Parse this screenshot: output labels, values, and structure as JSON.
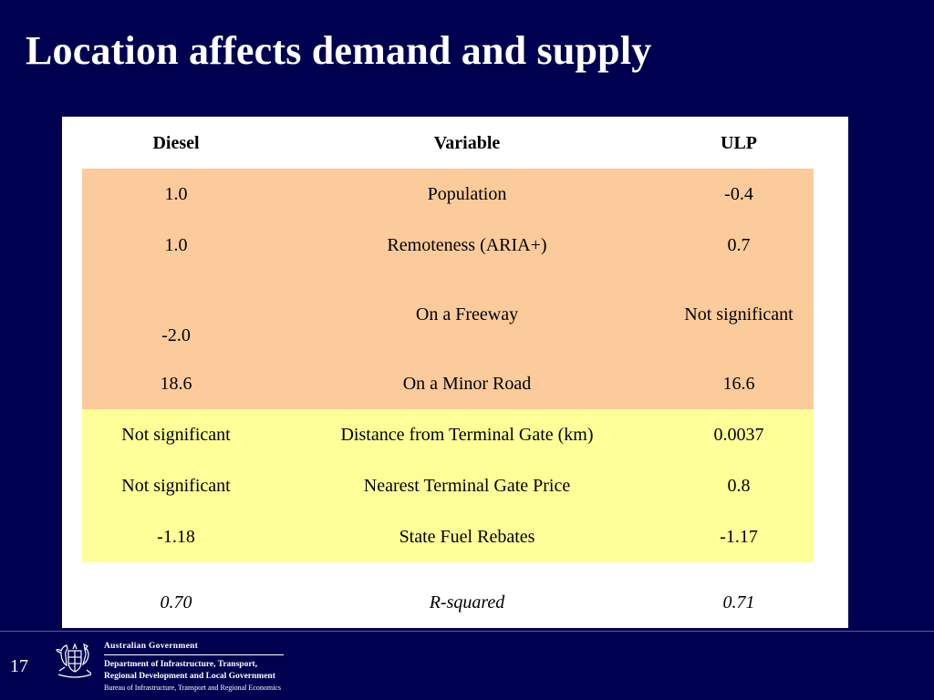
{
  "title": "Location affects demand and supply",
  "table": {
    "headers": {
      "diesel": "Diesel",
      "variable": "Variable",
      "ulp": "ULP"
    },
    "location_rows": [
      {
        "diesel": "1.0",
        "variable": "Population",
        "ulp": "-0.4"
      },
      {
        "diesel": "1.0",
        "variable": "Remoteness (ARIA+)",
        "ulp": "0.7"
      },
      {
        "diesel": "-2.0",
        "variable": "On a Freeway",
        "ulp": "Not significant"
      },
      {
        "diesel": "18.6",
        "variable": "On a Minor Road",
        "ulp": "16.6"
      }
    ],
    "price_rows": [
      {
        "diesel": "Not significant",
        "variable": "Distance from Terminal Gate (km)",
        "ulp": "0.0037"
      },
      {
        "diesel": "Not significant",
        "variable": "Nearest Terminal Gate Price",
        "ulp": "0.8"
      },
      {
        "diesel": "-1.18",
        "variable": "State Fuel Rebates",
        "ulp": "-1.17"
      }
    ],
    "fit_row": {
      "diesel": "0.70",
      "variable": "R-squared",
      "ulp": "0.71"
    }
  },
  "colors": {
    "background": "#000050",
    "location_rows": "#fccb9b",
    "price_rows": "#ffff99"
  },
  "footer": {
    "page_number": "17",
    "government": "Australian Government",
    "department_line1": "Department of Infrastructure, Transport,",
    "department_line2": "Regional Development and Local Government",
    "bureau": "Bureau of Infrastructure, Transport and Regional Economics",
    "crest_icon": "coat-of-arms-icon"
  }
}
